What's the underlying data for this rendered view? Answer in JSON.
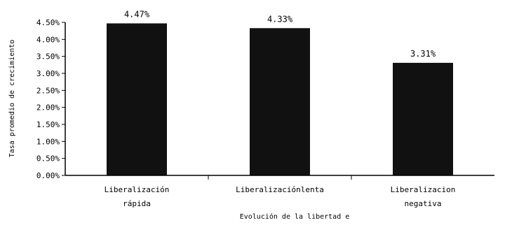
{
  "colors": {
    "bar": "#111111",
    "axis": "#000000",
    "background": "#ffffff"
  },
  "chart_data": {
    "type": "bar",
    "categories": [
      [
        "Liberalización",
        "rápida"
      ],
      [
        "Liberalizaciónlenta"
      ],
      [
        "Liberalizacion",
        "negativa"
      ]
    ],
    "values": [
      4.47,
      4.33,
      3.31
    ],
    "data_labels": [
      "4.47%",
      "4.33%",
      "3.31%"
    ],
    "xlabel": "Evolución de la libertad e",
    "ylabel": "Tasa promedio de crecimiento",
    "ylim": [
      0,
      4.5
    ],
    "yticks": [
      0,
      0.5,
      1.0,
      1.5,
      2.0,
      2.5,
      3.0,
      3.5,
      4.0,
      4.5
    ],
    "ytick_labels": [
      "0.00%",
      "0.50%",
      "1.00%",
      "1.50%",
      "2.00%",
      "2.50%",
      "3.00%",
      "3.50%",
      "4.00%",
      "4.50%"
    ],
    "grid": false,
    "legend": "none"
  }
}
